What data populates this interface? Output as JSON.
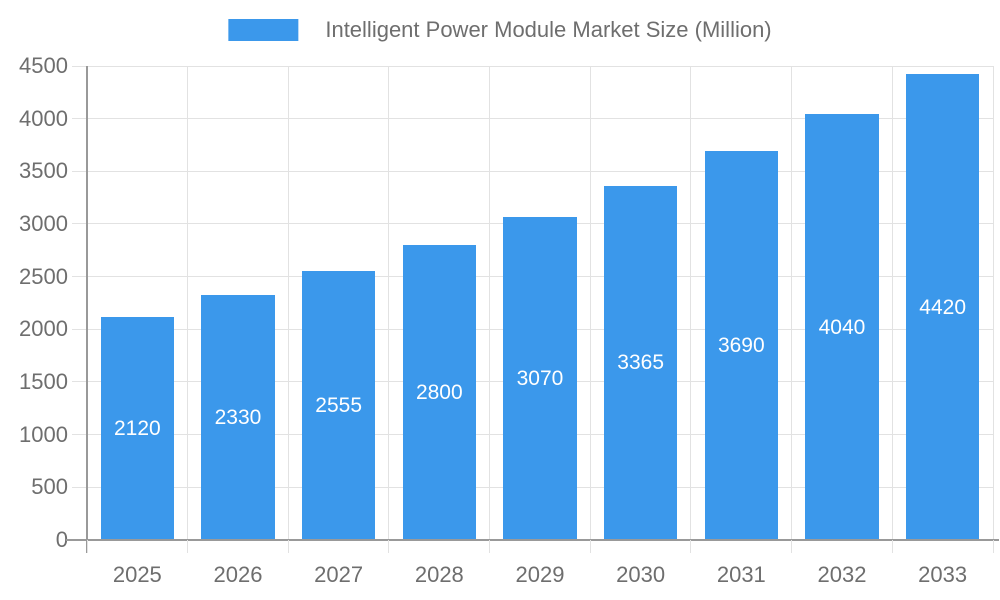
{
  "legend": {
    "label": "Intelligent Power Module Market Size (Million)"
  },
  "colors": {
    "bar": "#3B98EB",
    "grid": "#E2E2E2",
    "axis": "#999999",
    "text": "#6E6E6E",
    "value_label": "#FFFFFF",
    "background": "#FFFFFF"
  },
  "chart_data": {
    "type": "bar",
    "title": "Intelligent Power Module Market Size (Million)",
    "series_name": "Intelligent Power Module Market Size (Million)",
    "categories": [
      "2025",
      "2026",
      "2027",
      "2028",
      "2029",
      "2030",
      "2031",
      "2032",
      "2033"
    ],
    "values": [
      2120,
      2330,
      2555,
      2800,
      3070,
      3365,
      3690,
      4040,
      4420
    ],
    "xlabel": "",
    "ylabel": "",
    "ylim": [
      0,
      4500
    ],
    "ytick_step": 500,
    "yticks": [
      0,
      500,
      1000,
      1500,
      2000,
      2500,
      3000,
      3500,
      4000,
      4500
    ],
    "grid": true,
    "legend_position": "top-center",
    "value_labels": "inside-center-white"
  }
}
